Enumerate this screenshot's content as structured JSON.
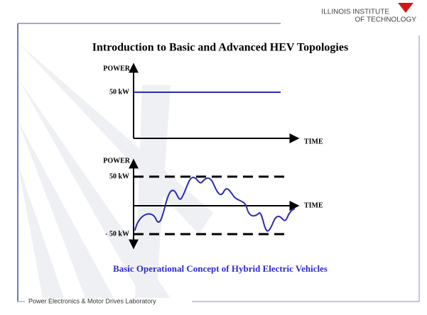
{
  "header": {
    "logo_line1": "ILLINOIS INSTITUTE",
    "logo_line2": "OF TECHNOLOGY"
  },
  "title": "Introduction to Basic and Advanced HEV Topologies",
  "diagrams": [
    {
      "y_axis": "POWER",
      "x_axis": "TIME",
      "levels": [
        "50 kW"
      ]
    },
    {
      "y_axis": "POWER",
      "x_axis": "TIME",
      "levels": [
        "50 kW",
        "- 50 kW"
      ]
    }
  ],
  "caption": "Basic Operational Concept of Hybrid Electric Vehicles",
  "footer": "Power Electronics & Motor Drives Laboratory"
}
